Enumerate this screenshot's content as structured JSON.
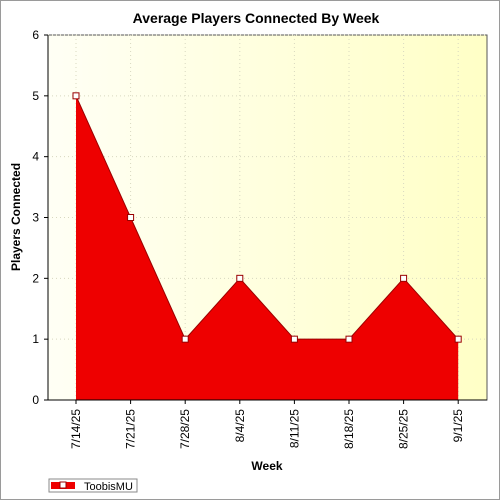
{
  "chart_data": {
    "type": "area",
    "title": "Average Players Connected By Week",
    "xlabel": "Week",
    "ylabel": "Players Connected",
    "categories": [
      "7/14/25",
      "7/21/25",
      "7/28/25",
      "8/4/25",
      "8/11/25",
      "8/18/25",
      "8/25/25",
      "9/1/25"
    ],
    "series": [
      {
        "name": "ToobisMU",
        "values": [
          5,
          3,
          1,
          2,
          1,
          1,
          2,
          1
        ],
        "color": "#ee0000"
      }
    ],
    "ylim": [
      0,
      6
    ],
    "yticks": [
      "0",
      "1",
      "2",
      "3",
      "4",
      "5",
      "6"
    ],
    "grid": true,
    "legend": "bottom-left",
    "colors": {
      "plot_background_left": "#fffff5",
      "plot_background_right": "#ffffc6",
      "area_fill": "#ee0000",
      "line": "#990000",
      "marker_fill": "#ffffff",
      "grid": "#d8d8c0"
    }
  }
}
